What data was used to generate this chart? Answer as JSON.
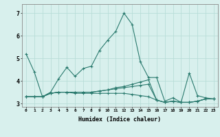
{
  "xlabel": "Humidex (Indice chaleur)",
  "x": [
    0,
    1,
    2,
    3,
    4,
    5,
    6,
    7,
    8,
    9,
    10,
    11,
    12,
    13,
    14,
    15,
    16,
    17,
    18,
    19,
    20,
    21,
    22,
    23
  ],
  "series": [
    [
      5.2,
      4.4,
      3.3,
      3.5,
      4.1,
      4.6,
      4.2,
      4.55,
      4.65,
      5.35,
      5.8,
      6.2,
      7.0,
      6.5,
      4.85,
      4.15,
      4.15,
      3.1,
      3.25,
      3.05,
      4.35,
      3.35,
      3.25,
      3.2
    ],
    [
      3.3,
      3.3,
      3.3,
      3.45,
      3.5,
      3.5,
      3.5,
      3.5,
      3.5,
      3.55,
      3.6,
      3.7,
      3.75,
      3.85,
      3.95,
      4.05,
      3.15,
      3.05,
      3.1,
      3.05,
      3.05,
      3.1,
      3.2,
      3.2
    ],
    [
      3.3,
      3.3,
      3.3,
      3.45,
      3.5,
      3.5,
      3.5,
      3.5,
      3.5,
      3.55,
      3.6,
      3.65,
      3.7,
      3.75,
      3.8,
      3.85,
      3.15,
      3.05,
      3.1,
      3.05,
      3.05,
      3.1,
      3.2,
      3.2
    ],
    [
      3.3,
      3.3,
      3.3,
      3.45,
      3.5,
      3.5,
      3.45,
      3.45,
      3.45,
      3.45,
      3.45,
      3.45,
      3.45,
      3.4,
      3.35,
      3.3,
      3.15,
      3.05,
      3.1,
      3.05,
      3.05,
      3.1,
      3.2,
      3.2
    ]
  ],
  "line_color": "#2a7a6e",
  "bg_color": "#d8f0ed",
  "grid_color": "#b8ddd8",
  "ylim": [
    2.85,
    7.4
  ],
  "yticks": [
    3,
    4,
    5,
    6,
    7
  ],
  "xlim": [
    -0.5,
    23.5
  ]
}
